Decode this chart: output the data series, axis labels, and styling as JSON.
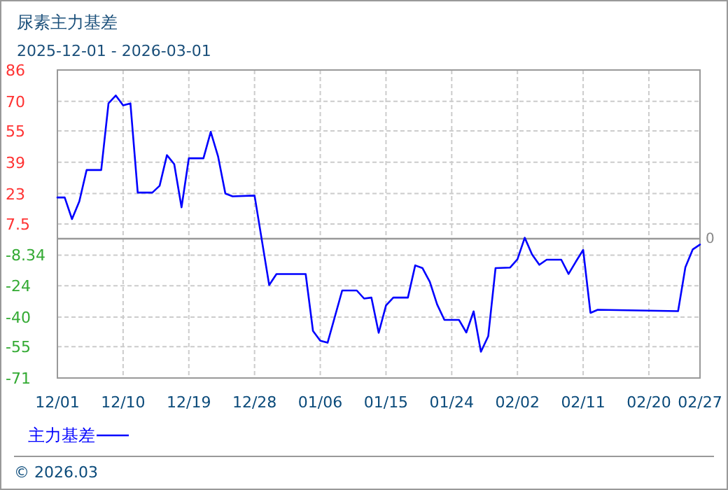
{
  "chart_data": {
    "type": "line",
    "title": "尿素主力基差",
    "subtitle": "2025-12-01 - 2026-03-01",
    "x": [
      "2025-12-01",
      "2025-12-02",
      "2025-12-03",
      "2025-12-04",
      "2025-12-05",
      "2025-12-07",
      "2025-12-08",
      "2025-12-09",
      "2025-12-10",
      "2025-12-11",
      "2025-12-12",
      "2025-12-14",
      "2025-12-15",
      "2025-12-16",
      "2025-12-17",
      "2025-12-18",
      "2025-12-19",
      "2025-12-21",
      "2025-12-22",
      "2025-12-23",
      "2025-12-24",
      "2025-12-25",
      "2025-12-28",
      "2025-12-30",
      "2025-12-31",
      "2026-01-04",
      "2026-01-05",
      "2026-01-06",
      "2026-01-07",
      "2026-01-09",
      "2026-01-11",
      "2026-01-12",
      "2026-01-13",
      "2026-01-14",
      "2026-01-15",
      "2026-01-16",
      "2026-01-18",
      "2026-01-19",
      "2026-01-20",
      "2026-01-21",
      "2026-01-22",
      "2026-01-23",
      "2026-01-25",
      "2026-01-26",
      "2026-01-27",
      "2026-01-28",
      "2026-01-29",
      "2026-01-30",
      "2026-02-01",
      "2026-02-02",
      "2026-02-03",
      "2026-02-04",
      "2026-02-05",
      "2026-02-06",
      "2026-02-08",
      "2026-02-09",
      "2026-02-10",
      "2026-02-11",
      "2026-02-12",
      "2026-02-13",
      "2026-02-24",
      "2026-02-25",
      "2026-02-26",
      "2026-02-27"
    ],
    "series": [
      {
        "name": "主力基差",
        "color": "#0000ff",
        "values": [
          21,
          21,
          10,
          19,
          35,
          35,
          69,
          73,
          68,
          69,
          23.5,
          23.5,
          27,
          42.6,
          38,
          16,
          41,
          41,
          54.5,
          42,
          23,
          21.6,
          22,
          -23.6,
          -18,
          -18,
          -47,
          -52,
          -53,
          -26.4,
          -26.4,
          -30.5,
          -30,
          -48,
          -34,
          -30,
          -30,
          -13.6,
          -15,
          -22,
          -33.5,
          -41.4,
          -41.4,
          -47.8,
          -37,
          -57.6,
          -49.7,
          -15,
          -14.7,
          -10.5,
          0.5,
          -8,
          -13.3,
          -10.7,
          -10.7,
          -18,
          -11.7,
          -5.7,
          -37.8,
          -36.2,
          -36.9,
          -14.5,
          -5.5,
          -3
        ]
      }
    ],
    "xlim": [
      "2025-12-01",
      "2026-02-27"
    ],
    "xticks": [
      {
        "value": "2025-12-01",
        "label": "12/01"
      },
      {
        "value": "2025-12-10",
        "label": "12/10"
      },
      {
        "value": "2025-12-19",
        "label": "12/19"
      },
      {
        "value": "2025-12-28",
        "label": "12/28"
      },
      {
        "value": "2026-01-06",
        "label": "01/06"
      },
      {
        "value": "2026-01-15",
        "label": "01/15"
      },
      {
        "value": "2026-01-24",
        "label": "01/24"
      },
      {
        "value": "2026-02-02",
        "label": "02/02"
      },
      {
        "value": "2026-02-11",
        "label": "02/11"
      },
      {
        "value": "2026-02-20",
        "label": "02/20"
      },
      {
        "value": "2026-02-27",
        "label": "02/27"
      }
    ],
    "ylim": [
      -71,
      86
    ],
    "yticks": [
      86,
      70,
      55,
      39,
      23,
      7.5,
      -8.34,
      -24,
      -40,
      -55,
      -71
    ],
    "ref_lines": [
      {
        "axis": "y",
        "value": 0,
        "label": "0",
        "color": "#999999"
      }
    ],
    "grid": true,
    "legend": "bottom left",
    "annotations": [
      "© 2026.03"
    ]
  }
}
